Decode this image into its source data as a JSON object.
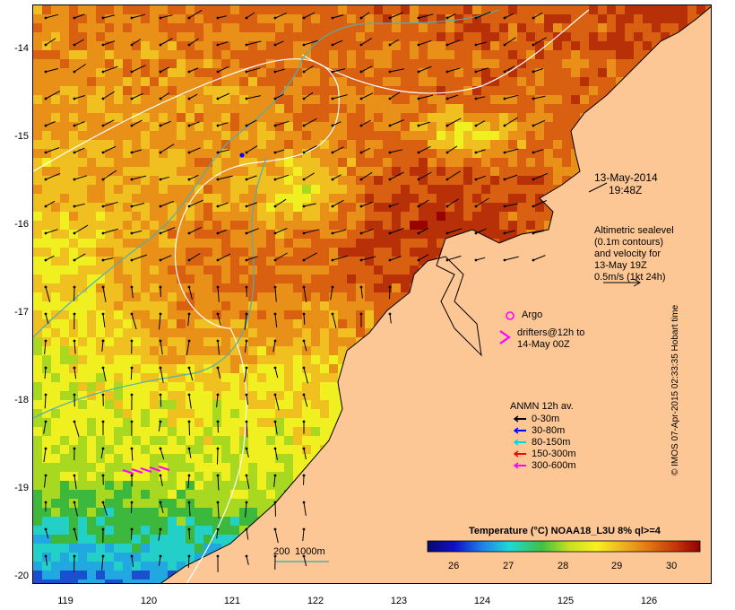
{
  "map": {
    "y_ticks": [
      "-14",
      "-15",
      "-16",
      "-17",
      "-18",
      "-19",
      "-20"
    ],
    "x_ticks": [
      "119",
      "120",
      "121",
      "122",
      "123",
      "124",
      "125",
      "126"
    ],
    "date_label": "13-May-2014",
    "time_label": "19:48Z",
    "altimetry_lines": [
      "Altimetric sealevel",
      "(0.1m contours)",
      "and velocity for",
      "13-May 19Z",
      "0.5m/s (1kt 24h)"
    ],
    "argo_label": "Argo",
    "drifters_lines": [
      "drifters@12h to",
      "14-May 00Z"
    ],
    "anmn_title": "ANMN 12h av.",
    "anmn_items": [
      {
        "label": "0-30m",
        "color": "#000000"
      },
      {
        "label": "30-80m",
        "color": "#0000ff"
      },
      {
        "label": "80-150m",
        "color": "#00d8d8"
      },
      {
        "label": "150-300m",
        "color": "#ff0000"
      },
      {
        "label": "300-600m",
        "color": "#ff00ff"
      }
    ],
    "depth_labels": [
      "200",
      "1000m"
    ],
    "colorbar_title": "Temperature (°C) NOAA18_L3U 8% ql>=4",
    "colorbar_ticks": [
      "26",
      "27",
      "28",
      "29",
      "30"
    ],
    "watermark": "© IMOS 07-Apr-2015 02:33:35 Hobart time",
    "colors": {
      "land": "#fdc795",
      "contour_200": "#ffffff",
      "contour_1000": "#4fb0b0"
    }
  }
}
